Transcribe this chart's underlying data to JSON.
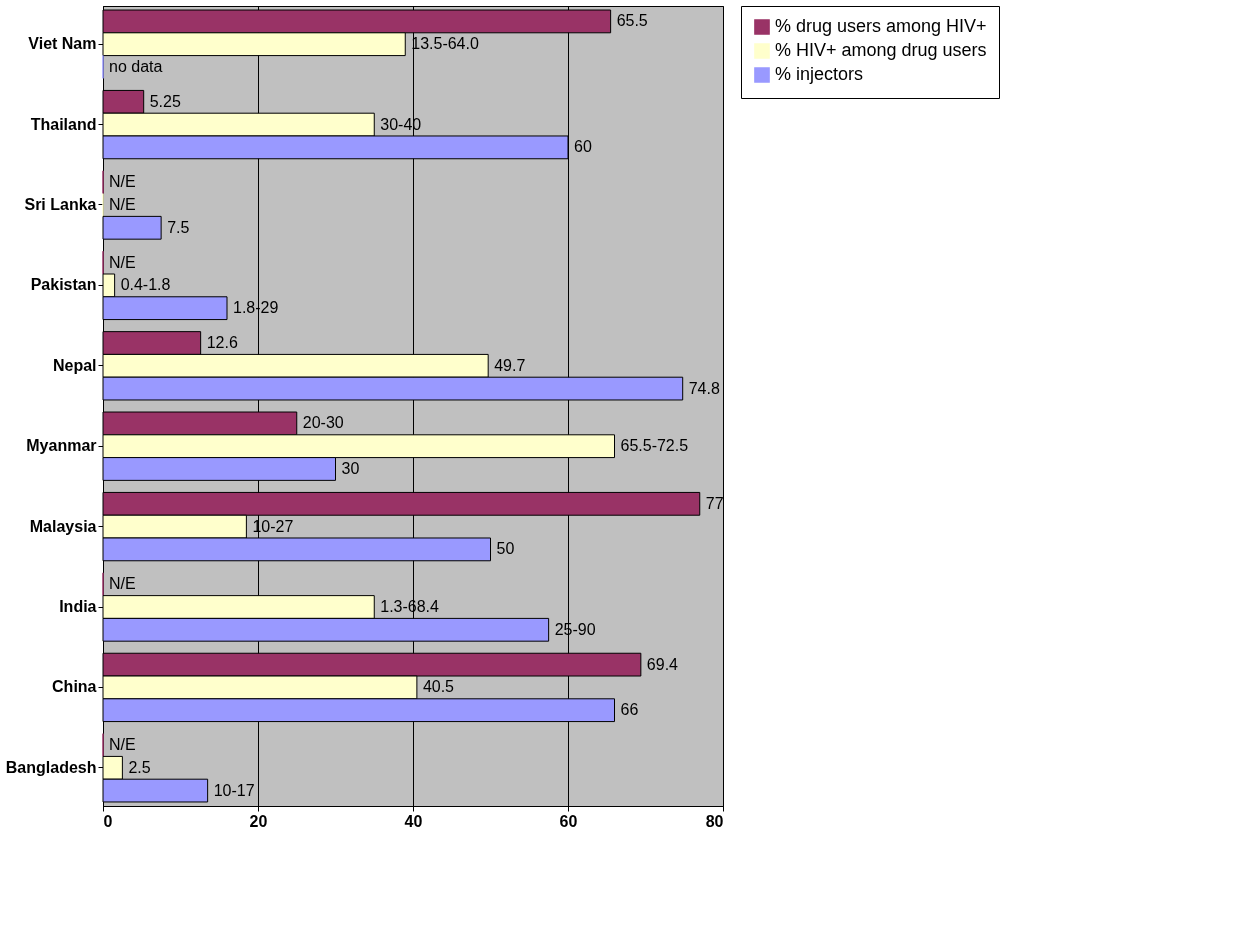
{
  "chart_data": {
    "type": "bar",
    "orientation": "horizontal",
    "categories": [
      "Viet Nam",
      "Thailand",
      "Sri Lanka",
      "Pakistan",
      "Nepal",
      "Myanmar",
      "Malaysia",
      "India",
      "China",
      "Bangladesh"
    ],
    "series": [
      {
        "name": "% drug users among HIV+",
        "color": "#993366",
        "values": [
          65.5,
          5.25,
          0,
          0,
          12.6,
          25,
          77,
          0,
          69.4,
          0
        ],
        "value_labels": [
          "65.5",
          "5.25",
          "N/E",
          "N/E",
          "12.6",
          "20-30",
          "77",
          "N/E",
          "69.4",
          "N/E"
        ]
      },
      {
        "name": "% HIV+ among drug users",
        "color": "#ffffcc",
        "values": [
          39,
          35,
          0,
          1.5,
          49.7,
          66,
          18.5,
          35,
          40.5,
          2.5
        ],
        "value_labels": [
          "13.5-64.0",
          "30-40",
          "N/E",
          "0.4-1.8",
          "49.7",
          "65.5-72.5",
          "10-27",
          "1.3-68.4",
          "40.5",
          "2.5"
        ]
      },
      {
        "name": "% injectors",
        "color": "#9999ff",
        "values": [
          0,
          60,
          7.5,
          16,
          74.8,
          30,
          50,
          57.5,
          66,
          13.5
        ],
        "value_labels": [
          "no data",
          "60",
          "7.5",
          "1.8-29",
          "74.8",
          "30",
          "50",
          "25-90",
          "66",
          "10-17"
        ]
      }
    ],
    "xlim": [
      0,
      80
    ],
    "xticks": [
      0,
      20,
      40,
      60,
      80
    ],
    "grid": "x",
    "legend": "top right"
  }
}
